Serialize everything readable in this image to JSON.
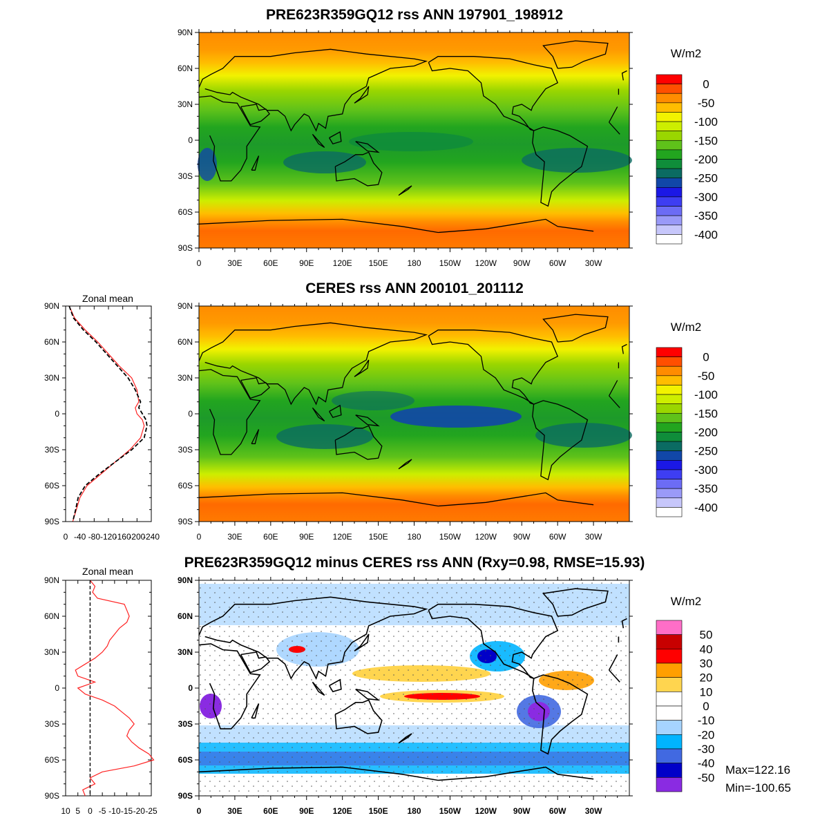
{
  "panels": [
    {
      "title": "PRE623R359GQ12 rss ANN 197901_198912",
      "units": "W/m2",
      "lat_labels": [
        "90N",
        "60N",
        "30N",
        "0",
        "30S",
        "60S",
        "90S"
      ],
      "lon_labels": [
        "0",
        "30E",
        "60E",
        "90E",
        "120E",
        "150E",
        "180",
        "150W",
        "120W",
        "90W",
        "60W",
        "30W"
      ],
      "colorbar_labels": [
        "0",
        "-50",
        "-100",
        "-150",
        "-200",
        "-250",
        "-300",
        "-350",
        "-400"
      ],
      "colorbar_colors": [
        "#ff0000",
        "#ff4f00",
        "#ff8c00",
        "#ffbd00",
        "#f2f200",
        "#cdee00",
        "#9ad600",
        "#5fc21a",
        "#22a51f",
        "#0f8d3a",
        "#0b6b62",
        "#1147a8",
        "#1b18e6",
        "#3e3ef2",
        "#6c6cf5",
        "#9a9af8",
        "#c7c7fb",
        "#ffffff"
      ]
    },
    {
      "title": "CERES rss ANN 200101_201112",
      "units": "W/m2",
      "lat_labels": [
        "90N",
        "60N",
        "30N",
        "0",
        "30S",
        "60S",
        "90S"
      ],
      "lon_labels": [
        "0",
        "30E",
        "60E",
        "90E",
        "120E",
        "150E",
        "180",
        "150W",
        "120W",
        "90W",
        "60W",
        "30W"
      ],
      "colorbar_labels": [
        "0",
        "-50",
        "-100",
        "-150",
        "-200",
        "-250",
        "-300",
        "-350",
        "-400"
      ],
      "colorbar_colors": [
        "#ff0000",
        "#ff4f00",
        "#ff8c00",
        "#ffbd00",
        "#f2f200",
        "#cdee00",
        "#9ad600",
        "#5fc21a",
        "#22a51f",
        "#0f8d3a",
        "#0b6b62",
        "#1147a8",
        "#1b18e6",
        "#3e3ef2",
        "#6c6cf5",
        "#9a9af8",
        "#c7c7fb",
        "#ffffff"
      ]
    },
    {
      "title": "PRE623R359GQ12 minus CERES rss ANN (Rxy=0.98, RMSE=15.93)",
      "units": "W/m2",
      "lat_labels": [
        "90N",
        "60N",
        "30N",
        "0",
        "30S",
        "60S",
        "90S"
      ],
      "lon_labels": [
        "0",
        "30E",
        "60E",
        "90E",
        "120E",
        "150E",
        "180",
        "150W",
        "120W",
        "90W",
        "60W",
        "30W"
      ],
      "colorbar_labels": [
        "50",
        "40",
        "30",
        "20",
        "10",
        "0",
        "-10",
        "-20",
        "-30",
        "-40",
        "-50"
      ],
      "colorbar_colors": [
        "#ff6ec7",
        "#c80000",
        "#ff0000",
        "#ff9f00",
        "#ffd54f",
        "#ffffff",
        "#ffffff",
        "#a6d4ff",
        "#00b4ff",
        "#4169e1",
        "#0000c8",
        "#8a2be2"
      ],
      "max_text": "Max=122.16",
      "min_text": "Min=-100.65"
    }
  ],
  "zonal_mean": [
    {
      "label": "Zonal mean",
      "lat_labels": [
        "90N",
        "60N",
        "30N",
        "0",
        "30S",
        "60S",
        "90S"
      ],
      "x_labels": [
        "0",
        "-40",
        "-80",
        "-120",
        "-160",
        "-200",
        "-240"
      ],
      "lat": [
        90,
        80,
        70,
        60,
        50,
        40,
        30,
        20,
        10,
        5,
        0,
        -5,
        -10,
        -20,
        -30,
        -40,
        -50,
        -60,
        -70,
        -80,
        -90
      ],
      "model": [
        -10,
        -25,
        -55,
        -90,
        -120,
        -150,
        -185,
        -200,
        -205,
        -195,
        -200,
        -215,
        -220,
        -210,
        -180,
        -140,
        -100,
        -60,
        -40,
        -30,
        -20
      ],
      "obs": [
        -10,
        -22,
        -50,
        -85,
        -115,
        -145,
        -175,
        -195,
        -210,
        -205,
        -215,
        -225,
        -228,
        -220,
        -185,
        -140,
        -95,
        -55,
        -35,
        -28,
        -20
      ]
    },
    {
      "label": "Zonal mean",
      "lat_labels": [
        "90N",
        "60N",
        "30N",
        "0",
        "30S",
        "60S",
        "90S"
      ],
      "x_labels": [
        "10",
        "5",
        "0",
        "-5",
        "-10",
        "-15",
        "-20",
        "-25"
      ],
      "lat": [
        90,
        85,
        80,
        75,
        70,
        65,
        60,
        55,
        50,
        45,
        40,
        35,
        30,
        25,
        20,
        15,
        10,
        5,
        0,
        -5,
        -10,
        -15,
        -20,
        -25,
        -30,
        -35,
        -40,
        -45,
        -50,
        -55,
        -60,
        -65,
        -70,
        -75,
        -80,
        -85,
        -90
      ],
      "diff": [
        0,
        -2,
        -1,
        -3,
        -14,
        -15,
        -16,
        -15,
        -12,
        -10,
        -8,
        -7,
        -5,
        -2,
        2,
        6,
        5,
        -2,
        5,
        2,
        -5,
        -10,
        -13,
        -16,
        -18,
        -16,
        -15,
        -17,
        -20,
        -24,
        -26,
        -18,
        -5,
        0,
        -2,
        3,
        2
      ]
    }
  ]
}
